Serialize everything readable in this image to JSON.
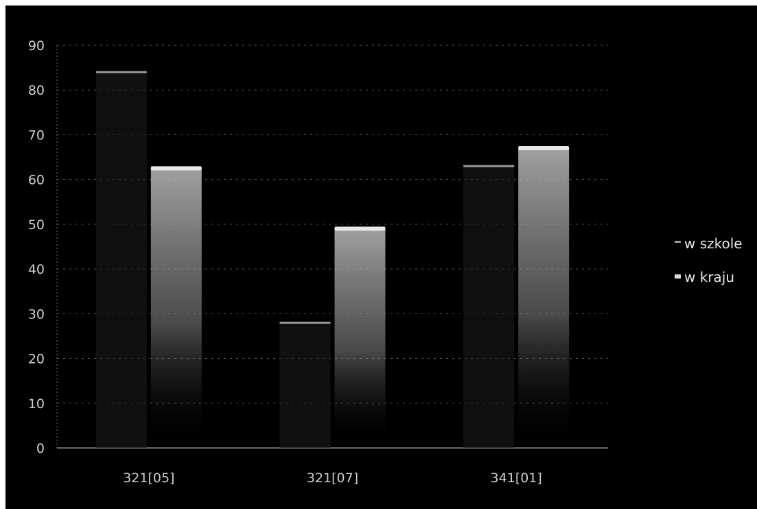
{
  "chart_data": {
    "type": "bar",
    "title": "",
    "xlabel": "",
    "ylabel": "",
    "categories": [
      "321[05]",
      "321[07]",
      "341[01]"
    ],
    "series": [
      {
        "name": "w szkole",
        "values": [
          84,
          28,
          63
        ],
        "color": "#9a9a9a"
      },
      {
        "name": "w kraju",
        "values": [
          62.5,
          49,
          67
        ],
        "color": "#b8b8b8"
      }
    ],
    "ylim": [
      0,
      90
    ],
    "yticks": [
      0,
      10,
      20,
      30,
      40,
      50,
      60,
      70,
      80,
      90
    ],
    "grid": true,
    "legend_position": "right"
  }
}
